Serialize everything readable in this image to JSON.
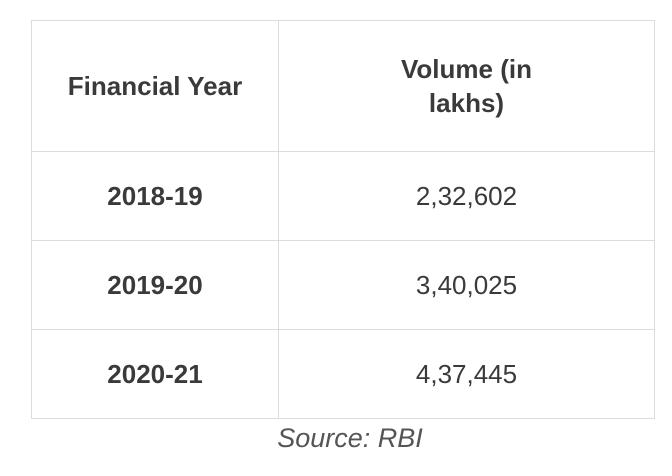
{
  "table": {
    "headers": [
      "Financial Year",
      "Volume (in lakhs)"
    ],
    "rows": [
      {
        "year": "2018-19",
        "volume": "2,32,602"
      },
      {
        "year": "2019-20",
        "volume": "3,40,025"
      },
      {
        "year": "2020-21",
        "volume": "4,37,445"
      }
    ]
  },
  "source": "Source: RBI"
}
